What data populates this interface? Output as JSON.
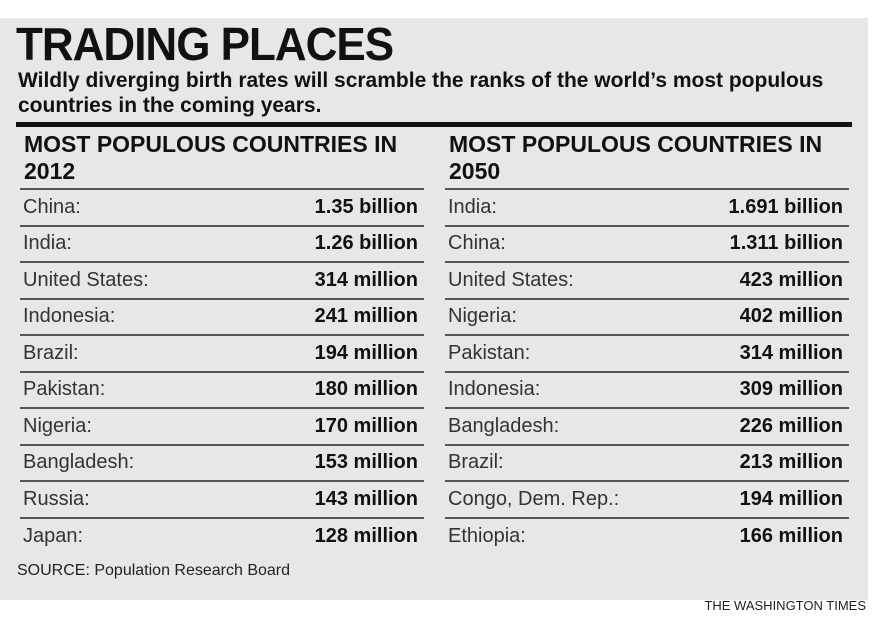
{
  "title": "TRADING PLACES",
  "subtitle": "Wildly diverging birth rates will scramble the ranks of the world’s most populous countries in the coming years.",
  "source": "SOURCE: Population Research Board",
  "credit": "THE WASHINGTON TIMES",
  "chart_data": {
    "type": "table",
    "tables": [
      {
        "heading": "MOST POPULOUS COUNTRIES IN 2012",
        "rows": [
          {
            "country": "China:",
            "value": "1.35 billion"
          },
          {
            "country": "India:",
            "value": "1.26 billion"
          },
          {
            "country": "United States:",
            "value": "314 million"
          },
          {
            "country": "Indonesia:",
            "value": "241 million"
          },
          {
            "country": "Brazil:",
            "value": "194 million"
          },
          {
            "country": "Pakistan:",
            "value": "180 million"
          },
          {
            "country": "Nigeria:",
            "value": "170 million"
          },
          {
            "country": "Bangladesh:",
            "value": "153 million"
          },
          {
            "country": "Russia:",
            "value": "143 million"
          },
          {
            "country": "Japan:",
            "value": "128 million"
          }
        ]
      },
      {
        "heading": "MOST POPULOUS COUNTRIES IN 2050",
        "rows": [
          {
            "country": "India:",
            "value": "1.691 billion"
          },
          {
            "country": "China:",
            "value": "1.311 billion"
          },
          {
            "country": "United States:",
            "value": "423 million"
          },
          {
            "country": "Nigeria:",
            "value": "402 million"
          },
          {
            "country": "Pakistan:",
            "value": "314 million"
          },
          {
            "country": "Indonesia:",
            "value": "309 million"
          },
          {
            "country": "Bangladesh:",
            "value": "226 million"
          },
          {
            "country": "Brazil:",
            "value": "213 million"
          },
          {
            "country": "Congo, Dem. Rep.:",
            "value": "194 million"
          },
          {
            "country": "Ethiopia:",
            "value": "166 million"
          }
        ]
      }
    ]
  }
}
